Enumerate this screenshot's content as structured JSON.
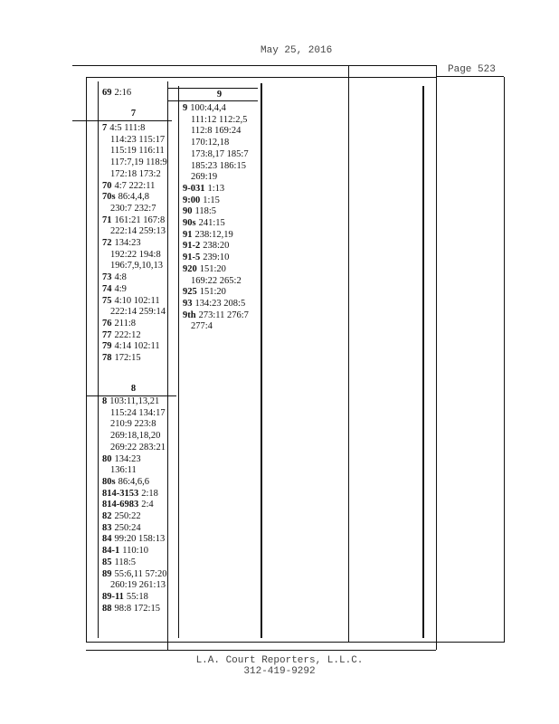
{
  "header": {
    "date": "May 25, 2016",
    "page": "Page 523"
  },
  "columns": [
    {
      "sections": [
        {
          "entries": [
            {
              "term": "69",
              "refs": [
                "2:16"
              ]
            }
          ]
        },
        {
          "heading": "7",
          "entries": [
            {
              "term": "7",
              "refs": [
                "4:5 111:8",
                "114:23 115:17",
                "115:19 116:11",
                "117:7,19 118:9",
                "172:18 173:2"
              ]
            },
            {
              "term": "70",
              "refs": [
                "4:7 222:11"
              ]
            },
            {
              "term": "70s",
              "refs": [
                "86:4,4,8",
                "230:7 232:7"
              ]
            },
            {
              "term": "71",
              "refs": [
                "161:21 167:8",
                "222:14 259:13"
              ]
            },
            {
              "term": "72",
              "refs": [
                "134:23",
                "192:22 194:8",
                "196:7,9,10,13"
              ]
            },
            {
              "term": "73",
              "refs": [
                "4:8"
              ]
            },
            {
              "term": "74",
              "refs": [
                "4:9"
              ]
            },
            {
              "term": "75",
              "refs": [
                "4:10 102:11",
                "222:14 259:14"
              ]
            },
            {
              "term": "76",
              "refs": [
                "211:8"
              ]
            },
            {
              "term": "77",
              "refs": [
                "222:12"
              ]
            },
            {
              "term": "79",
              "refs": [
                "4:14 102:11"
              ]
            },
            {
              "term": "78",
              "refs": [
                "172:15"
              ]
            }
          ]
        },
        {
          "heading": "8",
          "entries": [
            {
              "term": "8",
              "refs": [
                "103:11,13,21",
                "115:24 134:17",
                "210:9 223:8",
                "269:18,18,20",
                "269:22 283:21"
              ]
            },
            {
              "term": "80",
              "refs": [
                "134:23",
                "136:11"
              ]
            },
            {
              "term": "80s",
              "refs": [
                "86:4,6,6"
              ]
            },
            {
              "term": "814-3153",
              "refs": [
                "2:18"
              ]
            },
            {
              "term": "814-6983",
              "refs": [
                "2:4"
              ]
            },
            {
              "term": "82",
              "refs": [
                "250:22"
              ]
            },
            {
              "term": "83",
              "refs": [
                "250:24"
              ]
            },
            {
              "term": "84",
              "refs": [
                "99:20 158:13"
              ]
            },
            {
              "term": "84-1",
              "refs": [
                "110:10"
              ]
            },
            {
              "term": "85",
              "refs": [
                "118:5"
              ]
            },
            {
              "term": "89",
              "refs": [
                "55:6,11 57:20",
                "260:19 261:13"
              ]
            },
            {
              "term": "89-11",
              "refs": [
                "55:18"
              ]
            },
            {
              "term": "88",
              "refs": [
                "98:8 172:15"
              ]
            }
          ]
        }
      ]
    },
    {
      "sections": [
        {
          "heading": "9",
          "entries": [
            {
              "term": "9",
              "refs": [
                "100:4,4,4",
                "111:12 112:2,5",
                "112:8 169:24",
                "170:12,18",
                "173:8,17 185:7",
                "185:23 186:15",
                "269:19"
              ]
            },
            {
              "term": "9-031",
              "refs": [
                "1:13"
              ]
            },
            {
              "term": "9:00",
              "refs": [
                "1:15"
              ]
            },
            {
              "term": "90",
              "refs": [
                "118:5"
              ]
            },
            {
              "term": "90s",
              "refs": [
                "241:15"
              ]
            },
            {
              "term": "91",
              "refs": [
                "238:12,19"
              ]
            },
            {
              "term": "91-2",
              "refs": [
                "238:20"
              ]
            },
            {
              "term": "91-5",
              "refs": [
                "239:10"
              ]
            },
            {
              "term": "920",
              "refs": [
                "151:20",
                "169:22 265:2"
              ]
            },
            {
              "term": "925",
              "refs": [
                "151:20"
              ]
            },
            {
              "term": "93",
              "refs": [
                "134:23 208:5"
              ]
            },
            {
              "term": "9th",
              "refs": [
                "273:11 276:7",
                "277:4"
              ]
            }
          ]
        }
      ]
    }
  ],
  "footer": {
    "company": "L.A. Court Reporters, L.L.C.",
    "phone": "312-419-9292"
  }
}
